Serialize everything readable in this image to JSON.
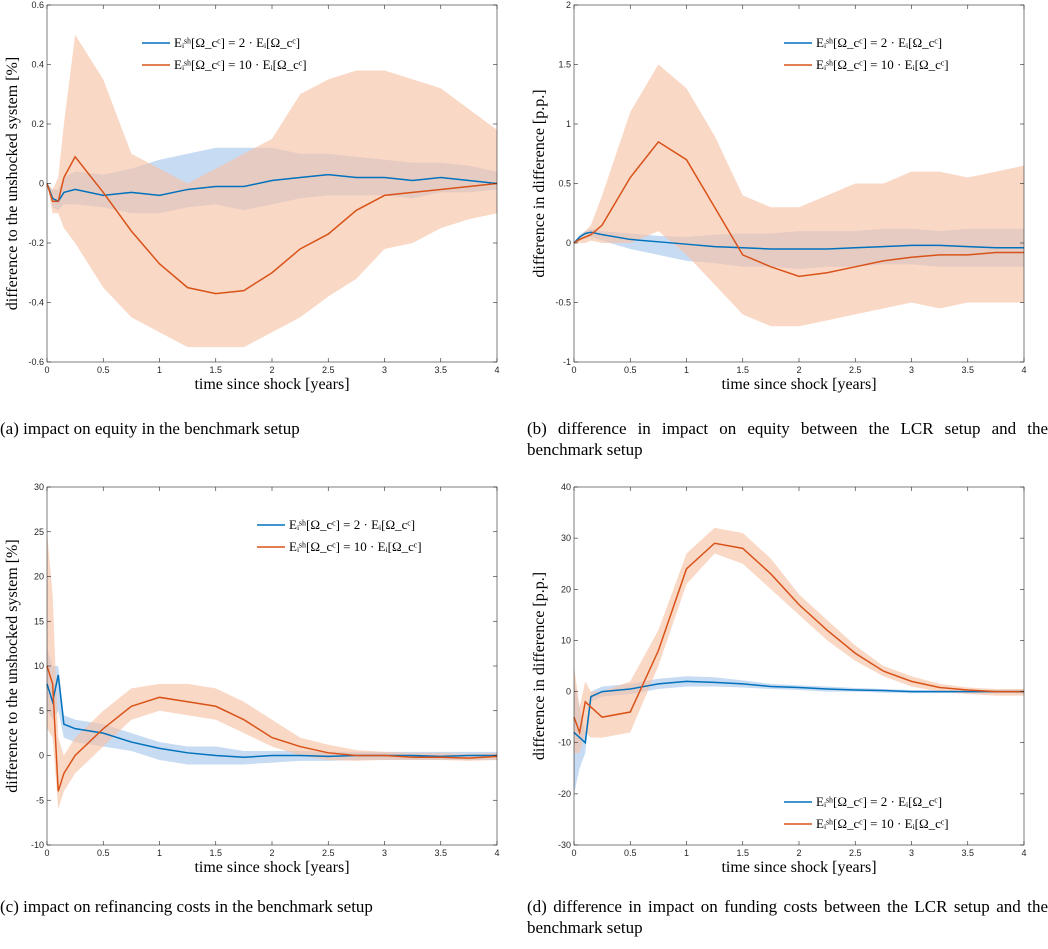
{
  "chart_data": [
    {
      "type": "line",
      "caption": "(a) impact on equity in the benchmark setup",
      "xlabel": "time since shock [years]",
      "ylabel": "difference to the unshocked system [%]",
      "legend": "upper center",
      "x": [
        0,
        0.05,
        0.1,
        0.15,
        0.25,
        0.5,
        0.75,
        1,
        1.25,
        1.5,
        1.75,
        2,
        2.25,
        2.5,
        2.75,
        3,
        3.25,
        3.5,
        3.75,
        4
      ],
      "xlim": [
        0,
        4
      ],
      "xticks": [
        0,
        0.5,
        1,
        1.5,
        2,
        2.5,
        3,
        3.5,
        4
      ],
      "ylim": [
        -0.6,
        0.6
      ],
      "yticks": [
        -0.6,
        -0.4,
        -0.2,
        0,
        0.2,
        0.4,
        0.6
      ],
      "series": [
        {
          "name": "Eᵢˢʰ[Ω_cᶜ] = 2 · Eᵢ[Ω_cᶜ]",
          "color": "#0072bd",
          "band_color": "#a9c8ec",
          "values": [
            0,
            -0.05,
            -0.06,
            -0.03,
            -0.02,
            -0.04,
            -0.03,
            -0.04,
            -0.02,
            -0.01,
            -0.01,
            0.01,
            0.02,
            0.03,
            0.02,
            0.02,
            0.01,
            0.02,
            0.01,
            0
          ],
          "lower": [
            0,
            -0.08,
            -0.09,
            -0.07,
            -0.07,
            -0.08,
            -0.1,
            -0.1,
            -0.08,
            -0.07,
            -0.09,
            -0.07,
            -0.05,
            -0.04,
            -0.04,
            -0.04,
            -0.05,
            -0.03,
            -0.03,
            -0.02
          ],
          "upper": [
            0,
            -0.02,
            -0.02,
            0.02,
            0.04,
            0.03,
            0.05,
            0.08,
            0.1,
            0.12,
            0.12,
            0.12,
            0.1,
            0.1,
            0.09,
            0.08,
            0.07,
            0.07,
            0.06,
            0.04
          ]
        },
        {
          "name": "Eᵢˢʰ[Ω_cᶜ] = 10 · Eᵢ[Ω_cᶜ]",
          "color": "#d95319",
          "band_color": "#f7c3a8",
          "values": [
            0,
            -0.06,
            -0.06,
            0.02,
            0.09,
            -0.03,
            -0.16,
            -0.27,
            -0.35,
            -0.37,
            -0.36,
            -0.3,
            -0.22,
            -0.17,
            -0.09,
            -0.04,
            -0.03,
            -0.02,
            -0.01,
            0
          ],
          "lower": [
            0,
            -0.1,
            -0.1,
            -0.15,
            -0.2,
            -0.35,
            -0.45,
            -0.5,
            -0.55,
            -0.55,
            -0.55,
            -0.5,
            -0.45,
            -0.38,
            -0.32,
            -0.22,
            -0.2,
            -0.15,
            -0.12,
            -0.1
          ],
          "upper": [
            0,
            -0.02,
            0.02,
            0.2,
            0.5,
            0.35,
            0.1,
            0.05,
            0,
            0.05,
            0.1,
            0.15,
            0.3,
            0.35,
            0.38,
            0.38,
            0.35,
            0.32,
            0.25,
            0.18
          ]
        }
      ]
    },
    {
      "type": "line",
      "caption": "(b) difference in impact on equity between the LCR setup and the benchmark setup",
      "xlabel": "time since shock [years]",
      "ylabel": "difference in difference [p.p.]",
      "legend": "upper right",
      "x": [
        0,
        0.05,
        0.1,
        0.15,
        0.25,
        0.5,
        0.75,
        1,
        1.25,
        1.5,
        1.75,
        2,
        2.25,
        2.5,
        2.75,
        3,
        3.25,
        3.5,
        3.75,
        4
      ],
      "xlim": [
        0,
        4
      ],
      "xticks": [
        0,
        0.5,
        1,
        1.5,
        2,
        2.5,
        3,
        3.5,
        4
      ],
      "ylim": [
        -1,
        2
      ],
      "yticks": [
        -1,
        -0.5,
        0,
        0.5,
        1,
        1.5,
        2
      ],
      "series": [
        {
          "name": "Eᵢˢʰ[Ω_cᶜ] = 2 · Eᵢ[Ω_cᶜ]",
          "color": "#0072bd",
          "band_color": "#a9c8ec",
          "values": [
            0,
            0.05,
            0.08,
            0.09,
            0.07,
            0.03,
            0.01,
            -0.01,
            -0.03,
            -0.04,
            -0.05,
            -0.05,
            -0.05,
            -0.04,
            -0.03,
            -0.02,
            -0.02,
            -0.03,
            -0.04,
            -0.04
          ],
          "lower": [
            0,
            0.02,
            0.04,
            0.05,
            0.02,
            -0.05,
            -0.1,
            -0.15,
            -0.17,
            -0.2,
            -0.2,
            -0.22,
            -0.2,
            -0.2,
            -0.18,
            -0.18,
            -0.2,
            -0.2,
            -0.2,
            -0.2
          ],
          "upper": [
            0,
            0.07,
            0.1,
            0.12,
            0.1,
            0.08,
            0.06,
            0.05,
            0.07,
            0.08,
            0.08,
            0.1,
            0.1,
            0.1,
            0.12,
            0.12,
            0.1,
            0.12,
            0.12,
            0.12
          ]
        },
        {
          "name": "Eᵢˢʰ[Ω_cᶜ] = 10 · Eᵢ[Ω_cᶜ]",
          "color": "#d95319",
          "band_color": "#f7c3a8",
          "values": [
            0,
            0.03,
            0.05,
            0.07,
            0.15,
            0.55,
            0.85,
            0.7,
            0.3,
            -0.1,
            -0.2,
            -0.28,
            -0.25,
            -0.2,
            -0.15,
            -0.12,
            -0.1,
            -0.1,
            -0.08,
            -0.08
          ],
          "lower": [
            0,
            0,
            0,
            0.02,
            0,
            0,
            0.1,
            -0.1,
            -0.35,
            -0.6,
            -0.7,
            -0.7,
            -0.65,
            -0.6,
            -0.55,
            -0.5,
            -0.55,
            -0.5,
            -0.5,
            -0.5
          ],
          "upper": [
            0,
            0.05,
            0.1,
            0.15,
            0.4,
            1.1,
            1.5,
            1.3,
            0.9,
            0.4,
            0.3,
            0.3,
            0.4,
            0.5,
            0.5,
            0.6,
            0.6,
            0.55,
            0.6,
            0.65
          ]
        }
      ]
    },
    {
      "type": "line",
      "caption": "(c) impact on refinancing costs in the benchmark setup",
      "xlabel": "time since shock [years]",
      "ylabel": "difference to the unshocked system [%]",
      "legend": "upper right",
      "x": [
        0,
        0.05,
        0.1,
        0.15,
        0.25,
        0.5,
        0.75,
        1,
        1.25,
        1.5,
        1.75,
        2,
        2.25,
        2.5,
        2.75,
        3,
        3.25,
        3.5,
        3.75,
        4
      ],
      "xlim": [
        0,
        4
      ],
      "xticks": [
        0,
        0.5,
        1,
        1.5,
        2,
        2.5,
        3,
        3.5,
        4
      ],
      "ylim": [
        -10,
        30
      ],
      "yticks": [
        -10,
        -5,
        0,
        5,
        10,
        15,
        20,
        25,
        30
      ],
      "series": [
        {
          "name": "Eᵢˢʰ[Ω_cᶜ] = 2 · Eᵢ[Ω_cᶜ]",
          "color": "#0072bd",
          "band_color": "#a9c8ec",
          "values": [
            8,
            6,
            9,
            3.5,
            3,
            2.5,
            1.5,
            0.8,
            0.3,
            0,
            -0.2,
            0,
            0,
            -0.1,
            0,
            0,
            0,
            -0.1,
            0,
            0
          ],
          "lower": [
            5,
            4,
            5,
            2,
            1.5,
            1,
            0.5,
            -0.5,
            -1,
            -1,
            -1,
            -0.8,
            -0.6,
            -0.6,
            -0.5,
            -0.5,
            -0.5,
            -0.5,
            -0.5,
            -0.5
          ],
          "upper": [
            12,
            10,
            10,
            4.5,
            4,
            3.5,
            2.5,
            1.5,
            1,
            1,
            0.5,
            0.5,
            0.5,
            0.4,
            0.4,
            0.4,
            0.4,
            0.4,
            0.4,
            0.4
          ]
        },
        {
          "name": "Eᵢˢʰ[Ω_cᶜ] = 10 · Eᵢ[Ω_cᶜ]",
          "color": "#d95319",
          "band_color": "#f7c3a8",
          "values": [
            10,
            8,
            -4,
            -2,
            0,
            3,
            5.5,
            6.5,
            6,
            5.5,
            4,
            2,
            1,
            0.3,
            0,
            0,
            -0.2,
            -0.2,
            -0.3,
            -0.1
          ],
          "lower": [
            3,
            2,
            -6,
            -4,
            -2,
            1,
            4,
            5,
            4.5,
            4,
            2.5,
            1,
            0,
            -0.5,
            -0.6,
            -0.5,
            -0.5,
            -0.5,
            -0.6,
            -0.5
          ],
          "upper": [
            25,
            18,
            2,
            0,
            2,
            5,
            7.5,
            8,
            8,
            7.5,
            6,
            4,
            2,
            1.2,
            0.6,
            0.4,
            0.3,
            0.3,
            0.2,
            0.3
          ]
        }
      ]
    },
    {
      "type": "line",
      "caption": "(d) difference in impact on funding costs between the LCR setup and the benchmark setup",
      "xlabel": "time since shock [years]",
      "ylabel": "difference in difference [p.p.]",
      "legend": "lower right",
      "x": [
        0,
        0.05,
        0.1,
        0.15,
        0.25,
        0.5,
        0.75,
        1,
        1.25,
        1.5,
        1.75,
        2,
        2.25,
        2.5,
        2.75,
        3,
        3.25,
        3.5,
        3.75,
        4
      ],
      "xlim": [
        0,
        4
      ],
      "xticks": [
        0,
        0.5,
        1,
        1.5,
        2,
        2.5,
        3,
        3.5,
        4
      ],
      "ylim": [
        -30,
        40
      ],
      "yticks": [
        -30,
        -20,
        -10,
        0,
        10,
        20,
        30,
        40
      ],
      "series": [
        {
          "name": "Eᵢˢʰ[Ω_cᶜ] = 2 · Eᵢ[Ω_cᶜ]",
          "color": "#0072bd",
          "band_color": "#a9c8ec",
          "values": [
            -8,
            -9,
            -10,
            -1,
            0,
            0.5,
            1.5,
            2,
            1.8,
            1.5,
            1,
            0.8,
            0.5,
            0.3,
            0.2,
            0,
            0,
            0,
            0,
            0
          ],
          "lower": [
            -20,
            -15,
            -12,
            -2,
            -1,
            -0.5,
            0.5,
            1,
            1,
            0.8,
            0.5,
            0.3,
            0,
            0,
            -0.2,
            -0.3,
            -0.3,
            -0.3,
            -0.3,
            -0.3
          ],
          "upper": [
            2,
            -3,
            -8,
            0,
            1,
            1.5,
            2.5,
            3,
            2.8,
            2.2,
            1.5,
            1.2,
            1,
            0.7,
            0.5,
            0.3,
            0.3,
            0.3,
            0.3,
            0.3
          ]
        },
        {
          "name": "Eᵢˢʰ[Ω_cᶜ] = 10 · Eᵢ[Ω_cᶜ]",
          "color": "#d95319",
          "band_color": "#f7c3a8",
          "values": [
            -5,
            -8,
            -2,
            -3,
            -5,
            -4,
            8,
            24,
            29,
            28,
            23,
            17,
            12,
            7.5,
            4,
            2,
            0.8,
            0.3,
            0,
            0
          ],
          "lower": [
            -12,
            -12,
            -8,
            -9,
            -9,
            -8,
            5,
            21,
            27,
            25,
            20,
            15,
            10,
            6,
            3,
            1,
            0,
            -0.5,
            -0.8,
            -0.8
          ],
          "upper": [
            5,
            -3,
            2,
            0,
            0,
            2,
            12,
            27,
            32,
            31,
            26,
            19,
            14,
            9,
            5,
            3,
            1.5,
            0.8,
            0.5,
            0.5
          ]
        }
      ]
    }
  ]
}
